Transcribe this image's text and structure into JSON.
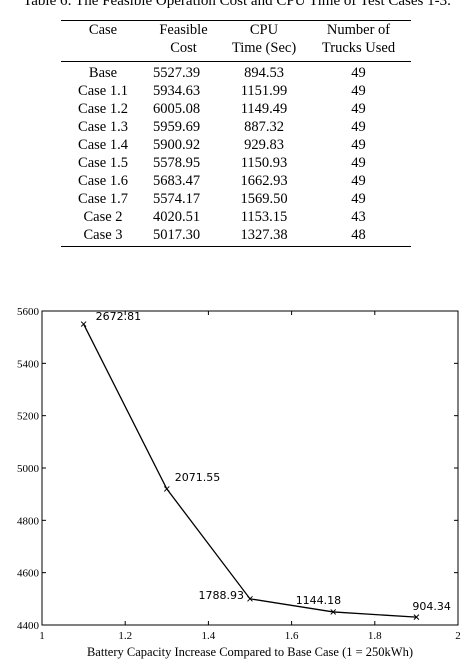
{
  "table": {
    "caption": "Table 6: The Feasible Operation Cost and CPU Time of Test Cases 1-3.",
    "headers": [
      [
        "Case",
        "Feasible",
        "CPU",
        "Number of"
      ],
      [
        "",
        "Cost",
        "Time (Sec)",
        "Trucks Used"
      ]
    ],
    "rows": [
      [
        "Base",
        "5527.39",
        "894.53",
        "49"
      ],
      [
        "Case 1.1",
        "5934.63",
        "1151.99",
        "49"
      ],
      [
        "Case 1.2",
        "6005.08",
        "1149.49",
        "49"
      ],
      [
        "Case 1.3",
        "5959.69",
        "887.32",
        "49"
      ],
      [
        "Case 1.4",
        "5900.92",
        "929.83",
        "49"
      ],
      [
        "Case 1.5",
        "5578.95",
        "1150.93",
        "49"
      ],
      [
        "Case 1.6",
        "5683.47",
        "1662.93",
        "49"
      ],
      [
        "Case 1.7",
        "5574.17",
        "1569.50",
        "49"
      ],
      [
        "Case 2",
        "4020.51",
        "1153.15",
        "43"
      ],
      [
        "Case 3",
        "5017.30",
        "1327.38",
        "48"
      ]
    ]
  },
  "chart_data": {
    "type": "line",
    "title": "",
    "xlabel": "Battery Capacity Increase Compared to Base Case (1 = 250kWh)",
    "ylabel": "",
    "xlim": [
      1,
      2
    ],
    "ylim": [
      4400,
      5600
    ],
    "xticks": [
      "1",
      "1.2",
      "1.4",
      "1.6",
      "1.8",
      "2"
    ],
    "yticks": [
      "4400",
      "4600",
      "4800",
      "5000",
      "5200",
      "5400",
      "5600"
    ],
    "grid": false,
    "x": [
      1.1,
      1.3,
      1.5,
      1.7,
      1.9
    ],
    "y": [
      5550,
      4920,
      4500,
      4450,
      4430
    ],
    "data_labels": [
      "2672.81",
      "2071.55",
      "1788.93",
      "1144.18",
      "904.34"
    ],
    "marker": "x",
    "line_color": "#000000"
  }
}
